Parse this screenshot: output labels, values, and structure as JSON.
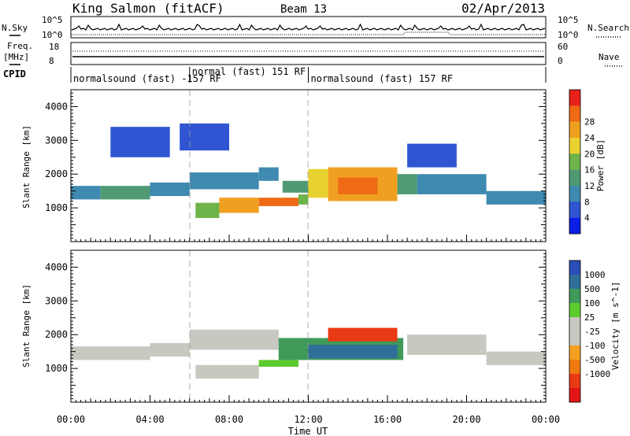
{
  "header": {
    "station": "King Salmon (fitACF)",
    "beam": "Beam 13",
    "date": "02/Apr/2013"
  },
  "summary": {
    "nsky_label": "N.Sky",
    "nsearch_label": "N.Search",
    "freq_label_1": "Freq.",
    "freq_label_2": "[MHz]",
    "nave_label": "Nave",
    "cpid_label": "CPID",
    "noise_ticks": [
      "10^5",
      "10^0"
    ],
    "freq_ticks": [
      "18",
      "8"
    ],
    "nave_ticks": [
      "60",
      "0"
    ],
    "cpid_segments": [
      {
        "label": "normalsound (fast) -157 RF",
        "start_hour": 0,
        "end_hour": 6.0
      },
      {
        "label": "normal (fast) 151 RF",
        "start_hour": 6.0,
        "end_hour": 12.0
      },
      {
        "label": "normalsound (fast) 157 RF",
        "start_hour": 12.0,
        "end_hour": 24.0
      }
    ]
  },
  "colors": {
    "power_scale": [
      "#0a1ee6",
      "#2f55d2",
      "#3f8ab0",
      "#4f9a73",
      "#6fb44a",
      "#e8d230",
      "#f0a020",
      "#ee6a14",
      "#e8221a"
    ],
    "velocity_scale": [
      "#2a4eb8",
      "#2f6f9a",
      "#3f9a5a",
      "#5ccb2e",
      "#c8c8c0",
      "#c8c8c0",
      "#f5a020",
      "#f07a10",
      "#e83a14",
      "#e01616"
    ]
  },
  "chart_data": [
    {
      "type": "heatmap",
      "name": "power",
      "xlabel": "Time UT",
      "ylabel": "Slant Range [km]",
      "x_ticks": [
        "00:00",
        "04:00",
        "08:00",
        "12:00",
        "16:00",
        "20:00",
        "00:00"
      ],
      "y_ticks": [
        "1000",
        "2000",
        "3000",
        "4000"
      ],
      "xlim": [
        0,
        24
      ],
      "ylim": [
        0,
        4500
      ],
      "colorbar_label": "Power [dB]",
      "colorbar_ticks": [
        "4",
        "8",
        "12",
        "16",
        "20",
        "24",
        "28"
      ],
      "colorbar_range": [
        0,
        32
      ],
      "regions": [
        {
          "t": [
            0,
            1.5
          ],
          "r": [
            1250,
            1650
          ],
          "v": 8
        },
        {
          "t": [
            1.5,
            4.0
          ],
          "r": [
            1250,
            1650
          ],
          "v": 12
        },
        {
          "t": [
            4.0,
            6.0
          ],
          "r": [
            1350,
            1750
          ],
          "v": 8
        },
        {
          "t": [
            6.0,
            9.5
          ],
          "r": [
            1550,
            2050
          ],
          "v": 8
        },
        {
          "t": [
            9.5,
            10.5
          ],
          "r": [
            1800,
            2200
          ],
          "v": 8
        },
        {
          "t": [
            6.3,
            7.5
          ],
          "r": [
            700,
            1150
          ],
          "v": 16
        },
        {
          "t": [
            7.5,
            9.5
          ],
          "r": [
            850,
            1300
          ],
          "v": 24
        },
        {
          "t": [
            9.5,
            11.5
          ],
          "r": [
            1050,
            1300
          ],
          "v": 28
        },
        {
          "t": [
            11.5,
            12.0
          ],
          "r": [
            1100,
            1400
          ],
          "v": 16
        },
        {
          "t": [
            10.7,
            12.0
          ],
          "r": [
            1450,
            1800
          ],
          "v": 12
        },
        {
          "t": [
            12.0,
            13.0
          ],
          "r": [
            1300,
            2150
          ],
          "v": 20
        },
        {
          "t": [
            13.0,
            16.5
          ],
          "r": [
            1200,
            2200
          ],
          "v": 24
        },
        {
          "t": [
            13.5,
            15.5
          ],
          "r": [
            1400,
            1900
          ],
          "v": 28
        },
        {
          "t": [
            16.5,
            17.5
          ],
          "r": [
            1400,
            2000
          ],
          "v": 12
        },
        {
          "t": [
            17.5,
            21.0
          ],
          "r": [
            1400,
            2000
          ],
          "v": 8
        },
        {
          "t": [
            21.0,
            24.0
          ],
          "r": [
            1100,
            1500
          ],
          "v": 8
        },
        {
          "t": [
            2.0,
            5.0
          ],
          "r": [
            2500,
            3400
          ],
          "v": 4
        },
        {
          "t": [
            5.5,
            8.0
          ],
          "r": [
            2700,
            3500
          ],
          "v": 4
        },
        {
          "t": [
            17.0,
            19.5
          ],
          "r": [
            2200,
            2900
          ],
          "v": 4
        }
      ]
    },
    {
      "type": "heatmap",
      "name": "velocity",
      "xlabel": "Time UT",
      "ylabel": "Slant Range [km]",
      "x_ticks": [
        "00:00",
        "04:00",
        "08:00",
        "12:00",
        "16:00",
        "20:00",
        "00:00"
      ],
      "y_ticks": [
        "1000",
        "2000",
        "3000",
        "4000"
      ],
      "xlim": [
        0,
        24
      ],
      "ylim": [
        0,
        4500
      ],
      "colorbar_label": "Velocity [m s^-1]",
      "colorbar_ticks": [
        "1000",
        "500",
        "100",
        "25",
        "-25",
        "-100",
        "-500",
        "-1000"
      ],
      "colorbar_range": [
        -1250,
        1250
      ],
      "regions": [
        {
          "t": [
            0,
            4.0
          ],
          "r": [
            1250,
            1650
          ],
          "v": 0
        },
        {
          "t": [
            4.0,
            6.0
          ],
          "r": [
            1350,
            1750
          ],
          "v": 0
        },
        {
          "t": [
            6.0,
            10.5
          ],
          "r": [
            1550,
            2150
          ],
          "v": 0
        },
        {
          "t": [
            6.3,
            9.5
          ],
          "r": [
            700,
            1100
          ],
          "v": 0
        },
        {
          "t": [
            9.5,
            11.5
          ],
          "r": [
            1050,
            1250
          ],
          "v": 60
        },
        {
          "t": [
            10.5,
            16.8
          ],
          "r": [
            1250,
            1900
          ],
          "v": 250
        },
        {
          "t": [
            12.0,
            16.5
          ],
          "r": [
            1300,
            1700
          ],
          "v": 700
        },
        {
          "t": [
            13.0,
            16.5
          ],
          "r": [
            1800,
            2200
          ],
          "v": -700
        },
        {
          "t": [
            17.0,
            21.0
          ],
          "r": [
            1400,
            2000
          ],
          "v": 0
        },
        {
          "t": [
            21.0,
            24.0
          ],
          "r": [
            1100,
            1500
          ],
          "v": 0
        }
      ]
    }
  ]
}
